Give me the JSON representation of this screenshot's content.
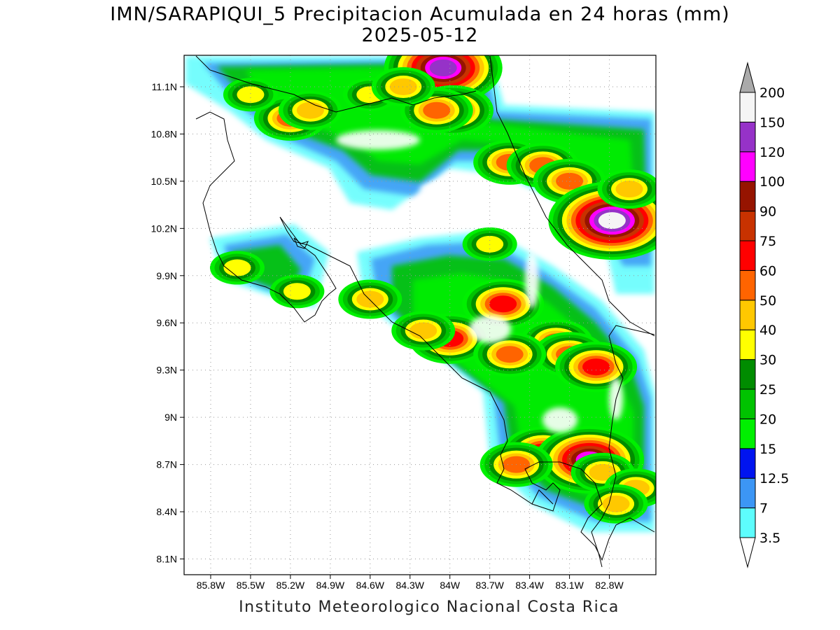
{
  "title": {
    "line1": "IMN/SARAPIQUI_5 Precipitacion Acumulada en 24 horas (mm)",
    "line2": "2025-05-12"
  },
  "footer": "Instituto Meteorologico Nacional Costa Rica",
  "map": {
    "lon_range": [
      -86.0,
      -82.45
    ],
    "lat_range": [
      8.0,
      11.3
    ],
    "lat_ticks": [
      {
        "value": 11.1,
        "label": "11.1N"
      },
      {
        "value": 10.8,
        "label": "10.8N"
      },
      {
        "value": 10.5,
        "label": "10.5N"
      },
      {
        "value": 10.2,
        "label": "10.2N"
      },
      {
        "value": 9.9,
        "label": "9.9N"
      },
      {
        "value": 9.6,
        "label": "9.6N"
      },
      {
        "value": 9.3,
        "label": "9.3N"
      },
      {
        "value": 9.0,
        "label": "9N"
      },
      {
        "value": 8.7,
        "label": "8.7N"
      },
      {
        "value": 8.4,
        "label": "8.4N"
      },
      {
        "value": 8.1,
        "label": "8.1N"
      }
    ],
    "lon_ticks": [
      {
        "value": -85.8,
        "label": "85.8W"
      },
      {
        "value": -85.5,
        "label": "85.5W"
      },
      {
        "value": -85.2,
        "label": "85.2W"
      },
      {
        "value": -84.9,
        "label": "84.9W"
      },
      {
        "value": -84.6,
        "label": "84.6W"
      },
      {
        "value": -84.3,
        "label": "84.3W"
      },
      {
        "value": -84.0,
        "label": "84W"
      },
      {
        "value": -83.7,
        "label": "83.7W"
      },
      {
        "value": -83.4,
        "label": "83.4W"
      },
      {
        "value": -83.1,
        "label": "83.1W"
      },
      {
        "value": -82.8,
        "label": "82.8W"
      }
    ],
    "grid": true
  },
  "colorbar": {
    "labels": [
      "3.5",
      "7",
      "12.5",
      "15",
      "20",
      "25",
      "30",
      "40",
      "50",
      "60",
      "75",
      "90",
      "100",
      "120",
      "150",
      "200"
    ],
    "colors": [
      "#5dfdfd",
      "#3c96f5",
      "#0014f0",
      "#00f000",
      "#00c300",
      "#008c00",
      "#ffff00",
      "#ffc800",
      "#ff6400",
      "#ff0000",
      "#c83200",
      "#961400",
      "#ff00ff",
      "#9632c8",
      "#f5f5f5",
      "#aaaaaa"
    ]
  },
  "precip_cells": [
    {
      "lon": -84.05,
      "lat": 11.22,
      "mm": 120
    },
    {
      "lon": -83.98,
      "lat": 10.95,
      "mm": 60
    },
    {
      "lon": -84.1,
      "lat": 10.95,
      "mm": 50
    },
    {
      "lon": -85.2,
      "lat": 10.9,
      "mm": 50
    },
    {
      "lon": -85.05,
      "lat": 10.95,
      "mm": 40
    },
    {
      "lon": -84.6,
      "lat": 11.05,
      "mm": 30
    },
    {
      "lon": -84.35,
      "lat": 11.1,
      "mm": 40
    },
    {
      "lon": -85.5,
      "lat": 11.05,
      "mm": 30
    },
    {
      "lon": -83.55,
      "lat": 10.62,
      "mm": 50
    },
    {
      "lon": -83.3,
      "lat": 10.6,
      "mm": 50
    },
    {
      "lon": -83.1,
      "lat": 10.5,
      "mm": 50
    },
    {
      "lon": -82.9,
      "lat": 10.3,
      "mm": 60
    },
    {
      "lon": -82.78,
      "lat": 10.25,
      "mm": 150
    },
    {
      "lon": -82.65,
      "lat": 10.45,
      "mm": 40
    },
    {
      "lon": -83.7,
      "lat": 10.1,
      "mm": 30
    },
    {
      "lon": -83.6,
      "lat": 9.72,
      "mm": 60
    },
    {
      "lon": -84.0,
      "lat": 9.5,
      "mm": 60
    },
    {
      "lon": -84.2,
      "lat": 9.55,
      "mm": 40
    },
    {
      "lon": -83.2,
      "lat": 9.48,
      "mm": 50
    },
    {
      "lon": -83.1,
      "lat": 9.4,
      "mm": 50
    },
    {
      "lon": -82.9,
      "lat": 9.32,
      "mm": 60
    },
    {
      "lon": -83.55,
      "lat": 9.4,
      "mm": 50
    },
    {
      "lon": -83.3,
      "lat": 8.78,
      "mm": 60
    },
    {
      "lon": -82.95,
      "lat": 8.73,
      "mm": 100
    },
    {
      "lon": -83.5,
      "lat": 8.7,
      "mm": 50
    },
    {
      "lon": -82.85,
      "lat": 8.65,
      "mm": 40
    },
    {
      "lon": -82.6,
      "lat": 8.55,
      "mm": 40
    },
    {
      "lon": -82.75,
      "lat": 8.45,
      "mm": 40
    },
    {
      "lon": -84.6,
      "lat": 9.75,
      "mm": 40
    },
    {
      "lon": -85.6,
      "lat": 9.95,
      "mm": 30
    },
    {
      "lon": -85.15,
      "lat": 9.8,
      "mm": 30
    }
  ]
}
